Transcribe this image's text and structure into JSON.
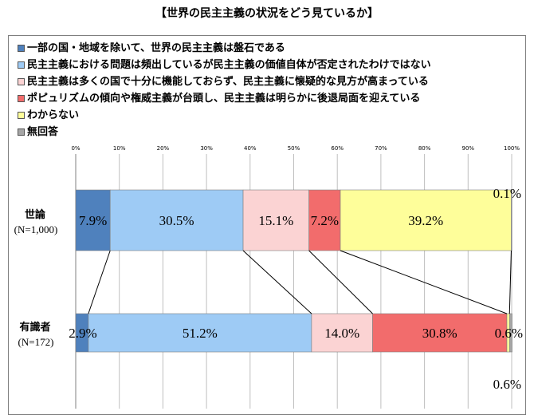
{
  "title": "【世界の民主主義の状況をどう見ているか】",
  "chart_data": {
    "type": "bar",
    "orientation": "horizontal",
    "stacked": true,
    "percent_scale": true,
    "xlim": [
      0,
      100
    ],
    "xticks": [
      "0%",
      "10%",
      "20%",
      "30%",
      "40%",
      "50%",
      "60%",
      "70%",
      "80%",
      "90%",
      "100%"
    ],
    "grid": true,
    "legend_position": "top-left",
    "categories": [
      {
        "name": "世論",
        "sub": "(N=1,000)"
      },
      {
        "name": "有識者",
        "sub": "(N=172)"
      }
    ],
    "series": [
      {
        "name": "一部の国・地域を除いて、世界の民主主義は盤石である",
        "color": "#4f81bd",
        "values": [
          7.9,
          2.9
        ],
        "labels": [
          "7.9%",
          "2.9%"
        ]
      },
      {
        "name": "民主主義における問題は頻出しているが民主主義の価値自体が否定されたわけではない",
        "color": "#9ecbf5",
        "values": [
          30.5,
          51.2
        ],
        "labels": [
          "30.5%",
          "51.2%"
        ]
      },
      {
        "name": "民主主義は多くの国で十分に機能しておらず、民主主義に懐疑的な見方が高まっている",
        "color": "#fbd3d3",
        "values": [
          15.1,
          14.0
        ],
        "labels": [
          "15.1%",
          "14.0%"
        ]
      },
      {
        "name": "ポピュリズムの傾向や権威主義が台頭し、民主主義は明らかに後退局面を迎えている",
        "color": "#f26c6c",
        "values": [
          7.2,
          30.8
        ],
        "labels": [
          "7.2%",
          "30.8%"
        ]
      },
      {
        "name": "わからない",
        "color": "#fefe9a",
        "values": [
          39.2,
          0.6
        ],
        "labels": [
          "39.2%",
          "0.6%"
        ]
      },
      {
        "name": "無回答",
        "color": "#a6a6a6",
        "values": [
          0.1,
          0.6
        ],
        "labels": [
          "0.1%",
          "0.6%"
        ]
      }
    ]
  }
}
